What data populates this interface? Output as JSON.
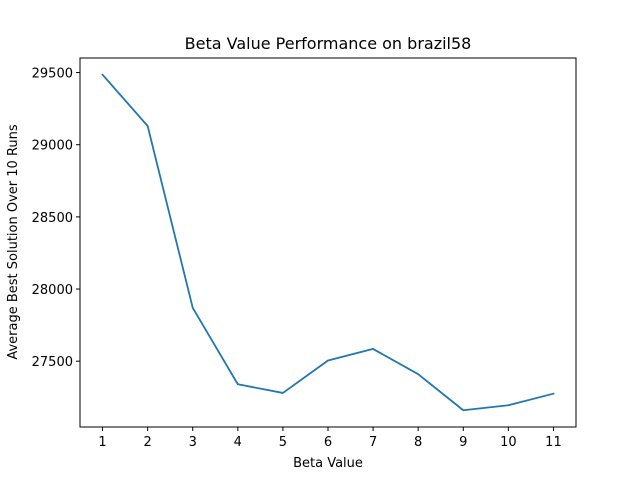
{
  "chart_data": {
    "type": "line",
    "title": "Beta Value Performance on brazil58",
    "xlabel": "Beta Value",
    "ylabel": "Average Best Solution Over 10 Runs",
    "x": [
      1,
      2,
      3,
      4,
      5,
      6,
      7,
      8,
      9,
      10,
      11
    ],
    "series": [
      {
        "values": [
          29485,
          29130,
          27870,
          27340,
          27280,
          27505,
          27585,
          27410,
          27160,
          27195,
          27275
        ],
        "color": "#1f77b4"
      }
    ],
    "xticks": [
      "1",
      "2",
      "3",
      "4",
      "5",
      "6",
      "7",
      "8",
      "9",
      "10",
      "11"
    ],
    "yticks": [
      "27500",
      "28000",
      "28500",
      "29000",
      "29500"
    ],
    "xlim": [
      0.5,
      11.5
    ],
    "ylim": [
      27044,
      29601
    ],
    "grid": false,
    "legend": false
  }
}
